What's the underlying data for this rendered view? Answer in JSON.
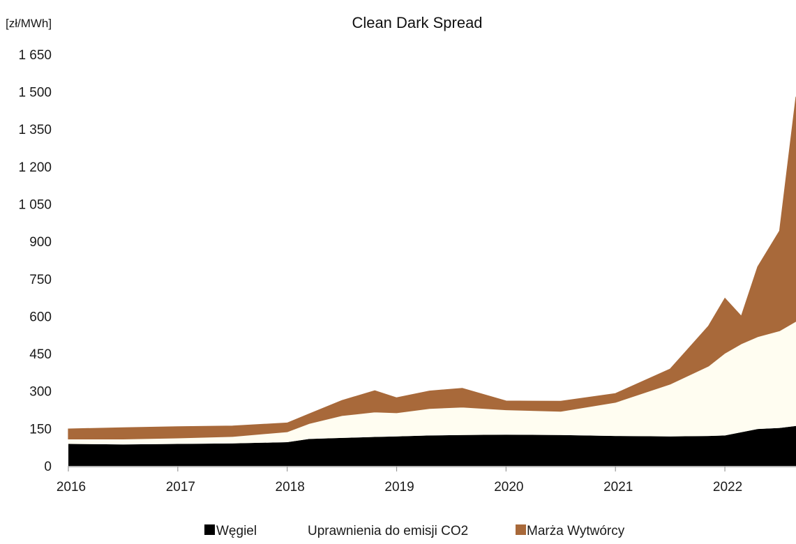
{
  "chart_data": {
    "type": "area",
    "stacked": true,
    "title": "Clean Dark Spread",
    "ylabel": "[zł/MWh]",
    "xlabel": "",
    "ylim": [
      0,
      1700
    ],
    "yticks": [
      0,
      150,
      300,
      450,
      600,
      750,
      900,
      1050,
      1200,
      1350,
      1500,
      1650
    ],
    "ytick_labels": [
      "0",
      "150",
      "300",
      "450",
      "600",
      "750",
      "900",
      "1 050",
      "1 200",
      "1 350",
      "1 500",
      "1 650"
    ],
    "xlim": [
      2016.0,
      2022.65
    ],
    "xticks": [
      2016,
      2017,
      2018,
      2019,
      2020,
      2021,
      2022
    ],
    "xtick_labels": [
      "2016",
      "2017",
      "2018",
      "2019",
      "2020",
      "2021",
      "2022"
    ],
    "grid": false,
    "legend_position": "bottom",
    "series": [
      {
        "name": "Węgiel",
        "color": "#000000",
        "x": [
          2016.0,
          2016.5,
          2017.0,
          2017.5,
          2018.0,
          2018.2,
          2018.5,
          2018.8,
          2019.0,
          2019.3,
          2019.6,
          2020.0,
          2020.5,
          2021.0,
          2021.5,
          2021.85,
          2022.0,
          2022.15,
          2022.3,
          2022.5,
          2022.65
        ],
        "values": [
          88,
          86,
          88,
          90,
          95,
          108,
          112,
          116,
          118,
          122,
          124,
          125,
          124,
          120,
          118,
          120,
          122,
          135,
          148,
          152,
          160
        ]
      },
      {
        "name": "Uprawnienia do emisji CO2",
        "color": "#fffdf1",
        "x": [
          2016.0,
          2016.5,
          2017.0,
          2017.5,
          2018.0,
          2018.2,
          2018.5,
          2018.8,
          2019.0,
          2019.3,
          2019.6,
          2020.0,
          2020.5,
          2021.0,
          2021.5,
          2021.85,
          2022.0,
          2022.15,
          2022.3,
          2022.5,
          2022.65
        ],
        "values": [
          20,
          22,
          24,
          28,
          42,
          62,
          90,
          100,
          95,
          108,
          112,
          100,
          95,
          135,
          210,
          280,
          330,
          355,
          370,
          390,
          420
        ]
      },
      {
        "name": "Marża Wytwórcy",
        "color": "#a8693a",
        "x": [
          2016.0,
          2016.5,
          2017.0,
          2017.5,
          2018.0,
          2018.2,
          2018.5,
          2018.8,
          2019.0,
          2019.3,
          2019.6,
          2020.0,
          2020.5,
          2021.0,
          2021.5,
          2021.85,
          2022.0,
          2022.15,
          2022.3,
          2022.5,
          2022.65
        ],
        "values": [
          40,
          45,
          45,
          42,
          35,
          38,
          60,
          85,
          60,
          70,
          75,
          35,
          40,
          35,
          60,
          160,
          220,
          110,
          280,
          400,
          900
        ]
      }
    ]
  },
  "legend": [
    {
      "label": "Węgiel",
      "color": "#000000"
    },
    {
      "label": "Uprawnienia do emisji CO2",
      "color": "#fffdf1"
    },
    {
      "label": "Marża Wytwórcy",
      "color": "#a8693a"
    }
  ]
}
